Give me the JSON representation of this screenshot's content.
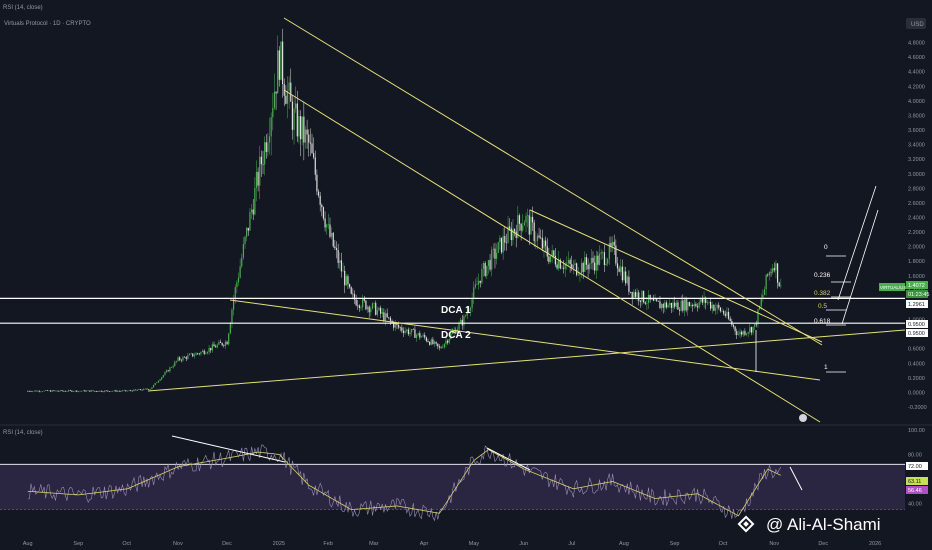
{
  "header": {
    "indicator_top": "RSI (14, close)",
    "symbol": "Virtuals Protocol · 1D · CRYPTO",
    "currency": "USD",
    "rsi_pane_title": "RSI (14, close)"
  },
  "watermark": {
    "text": "@ Ali-Al-Shami",
    "icon": "binance-square-logo"
  },
  "colors": {
    "background": "#131722",
    "candle_up": "#4caf50",
    "candle_down": "#e0e0e0",
    "trendline": "#e6e07a",
    "level_line": "#ffffff",
    "rsi_line": "#9c8fb8",
    "rsi_ma": "#d8d26a",
    "rsi_fill": "#2a2540",
    "price_tag": "#4caf50"
  },
  "annotations": {
    "dca1": "DCA 1",
    "dca2": "DCA 2",
    "fib_labels": [
      "0",
      "0.236",
      "0.382",
      "0.5",
      "0.618",
      "1"
    ]
  },
  "price_tags": {
    "current_pair": "VIRTUAL/USDT",
    "current": "1.4072",
    "countdown": "01:23:45",
    "dca1": "1.2961",
    "dca2_a": "0.9500",
    "dca2_b": "0.9500"
  },
  "rsi_tags": {
    "upper": "72.00",
    "value": "63.11",
    "ma": "56.46"
  },
  "chart_data": [
    {
      "type": "candlestick",
      "title": "Virtuals Protocol · 1D · CRYPTO",
      "x_ticks": [
        "Aug",
        "Sep",
        "Oct",
        "Nov",
        "Dec",
        "2025",
        "Feb",
        "Mar",
        "Apr",
        "May",
        "Jun",
        "Jul",
        "Aug",
        "Sep",
        "Oct",
        "Nov",
        "Dec",
        "2026"
      ],
      "y_ticks": [
        "-0.2000",
        "0.0000",
        "0.2000",
        "0.4000",
        "0.6000",
        "0.8000",
        "1.0000",
        "1.2000",
        "1.4000",
        "1.6000",
        "1.8000",
        "2.0000",
        "2.2000",
        "2.4000",
        "2.6000",
        "2.8000",
        "3.0000",
        "3.2000",
        "3.4000",
        "3.6000",
        "3.8000",
        "4.0000",
        "4.2000",
        "4.4000",
        "4.6000",
        "4.8000"
      ],
      "ylim": [
        -0.2,
        5.0
      ],
      "series": [
        {
          "name": "Price",
          "points": [
            [
              "2024-08-01",
              0.02
            ],
            [
              "2024-09-01",
              0.02
            ],
            [
              "2024-10-01",
              0.02
            ],
            [
              "2024-10-15",
              0.05
            ],
            [
              "2024-11-01",
              0.45
            ],
            [
              "2024-11-15",
              0.55
            ],
            [
              "2024-12-01",
              0.7
            ],
            [
              "2024-12-05",
              1.3
            ],
            [
              "2024-12-15",
              2.4
            ],
            [
              "2024-12-25",
              3.5
            ],
            [
              "2025-01-02",
              4.6
            ],
            [
              "2025-01-10",
              3.8
            ],
            [
              "2025-01-20",
              3.4
            ],
            [
              "2025-02-01",
              2.2
            ],
            [
              "2025-02-15",
              1.3
            ],
            [
              "2025-03-01",
              1.15
            ],
            [
              "2025-03-15",
              0.9
            ],
            [
              "2025-04-01",
              0.75
            ],
            [
              "2025-04-10",
              0.6
            ],
            [
              "2025-04-25",
              1.0
            ],
            [
              "2025-05-05",
              1.6
            ],
            [
              "2025-05-20",
              2.1
            ],
            [
              "2025-06-01",
              2.4
            ],
            [
              "2025-06-15",
              1.9
            ],
            [
              "2025-07-01",
              1.7
            ],
            [
              "2025-07-15",
              1.8
            ],
            [
              "2025-07-25",
              1.95
            ],
            [
              "2025-08-05",
              1.4
            ],
            [
              "2025-08-20",
              1.2
            ],
            [
              "2025-09-05",
              1.2
            ],
            [
              "2025-09-20",
              1.25
            ],
            [
              "2025-10-01",
              1.1
            ],
            [
              "2025-10-10",
              0.8
            ],
            [
              "2025-10-20",
              0.9
            ],
            [
              "2025-10-28",
              1.6
            ],
            [
              "2025-11-01",
              1.8
            ],
            [
              "2025-11-05",
              1.41
            ]
          ]
        }
      ],
      "levels": {
        "dca1": 1.29,
        "dca2": 0.95
      },
      "grid": false
    },
    {
      "type": "line",
      "title": "RSI (14, close)",
      "y_ticks": [
        "40.00",
        "60.00",
        "80.00",
        "100.00"
      ],
      "ylim": [
        20,
        100
      ],
      "bands": [
        72,
        35
      ],
      "series": [
        {
          "name": "RSI",
          "points": [
            [
              "2024-08-01",
              50
            ],
            [
              "2024-09-01",
              47
            ],
            [
              "2024-10-01",
              52
            ],
            [
              "2024-11-01",
              70
            ],
            [
              "2024-12-05",
              78
            ],
            [
              "2024-12-20",
              82
            ],
            [
              "2025-01-02",
              80
            ],
            [
              "2025-01-20",
              55
            ],
            [
              "2025-02-15",
              35
            ],
            [
              "2025-03-15",
              38
            ],
            [
              "2025-04-10",
              32
            ],
            [
              "2025-05-01",
              75
            ],
            [
              "2025-05-10",
              84
            ],
            [
              "2025-06-01",
              68
            ],
            [
              "2025-07-01",
              52
            ],
            [
              "2025-07-25",
              58
            ],
            [
              "2025-08-20",
              44
            ],
            [
              "2025-09-15",
              48
            ],
            [
              "2025-10-10",
              30
            ],
            [
              "2025-10-28",
              68
            ],
            [
              "2025-11-05",
              63
            ]
          ]
        }
      ]
    }
  ]
}
